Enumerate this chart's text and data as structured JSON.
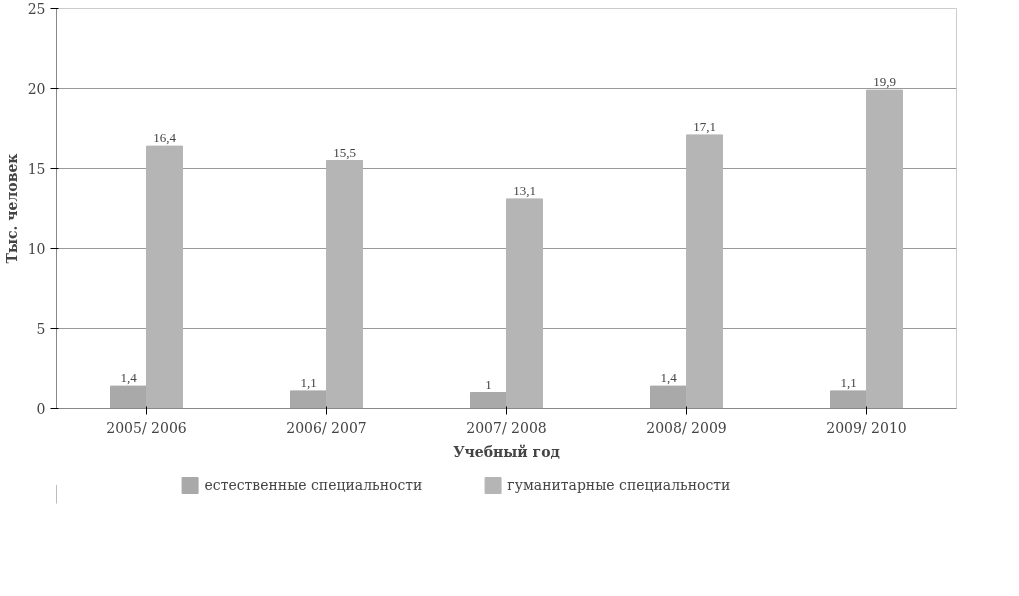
{
  "chart_data": {
    "type": "bar",
    "xlabel": "Учебный год",
    "ylabel": "Тыс. человек",
    "categories": [
      "2005/ 2006",
      "2006/ 2007",
      "2007/ 2008",
      "2008/ 2009",
      "2009/ 2010"
    ],
    "series": [
      {
        "name": "естественные специальности",
        "color": "#a9a9a9",
        "values": [
          1.4,
          1.1,
          1,
          1.4,
          1.1
        ],
        "value_labels": [
          "1,4",
          "1,1",
          "1",
          "1,4",
          "1,1"
        ]
      },
      {
        "name": "гуманитарные специальности",
        "color": "#b5b5b5",
        "values": [
          16.4,
          15.5,
          13.1,
          17.1,
          19.9
        ],
        "value_labels": [
          "16,4",
          "15,5",
          "13,1",
          "17,1",
          "19,9"
        ]
      }
    ],
    "ylim": [
      0,
      25
    ],
    "yticks": [
      0,
      5,
      10,
      15,
      20,
      25
    ],
    "grid": "y",
    "legend": "bottom"
  }
}
